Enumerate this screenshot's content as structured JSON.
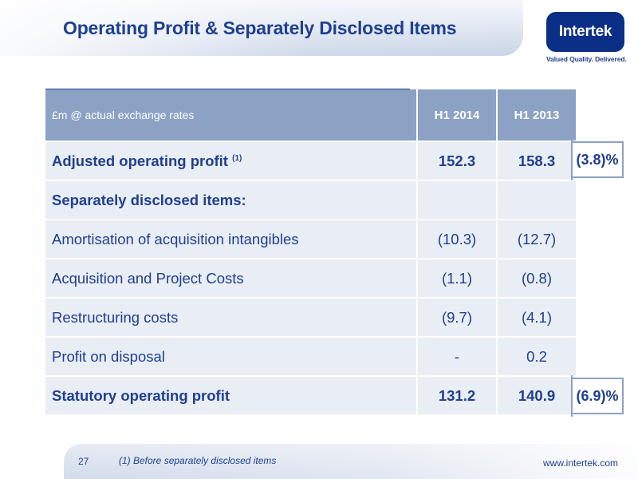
{
  "header": {
    "title": "Operating Profit & Separately Disclosed Items",
    "logo_text": "Intertek",
    "tagline": "Valued Quality. Delivered."
  },
  "table": {
    "columns": [
      "£m @ actual exchange rates",
      "H1 2014",
      "H1 2013"
    ],
    "rows": [
      {
        "label": "Adjusted operating profit",
        "sup": "(1)",
        "h1_2014": "152.3",
        "h1_2013": "158.3",
        "change": "(3.8)%"
      },
      {
        "label": "Separately disclosed items:",
        "h1_2014": "",
        "h1_2013": ""
      },
      {
        "label": "Amortisation of acquisition intangibles",
        "h1_2014": "(10.3)",
        "h1_2013": "(12.7)"
      },
      {
        "label": "Acquisition and Project Costs",
        "h1_2014": "(1.1)",
        "h1_2013": "(0.8)"
      },
      {
        "label": "Restructuring costs",
        "h1_2014": "(9.7)",
        "h1_2013": "(4.1)"
      },
      {
        "label": "Profit on disposal",
        "h1_2014": "-",
        "h1_2013": "0.2"
      },
      {
        "label": "Statutory operating profit",
        "h1_2014": "131.2",
        "h1_2013": "140.9",
        "change": "(6.9)%"
      }
    ]
  },
  "footer": {
    "page_number": "27",
    "footnote": "(1) Before separately disclosed items",
    "url": "www.intertek.com"
  },
  "colors": {
    "brand_navy": "#1f3f91",
    "logo_blue": "#0b2f86",
    "header_row": "#8ba2c4",
    "body_row": "#e9edf4"
  }
}
